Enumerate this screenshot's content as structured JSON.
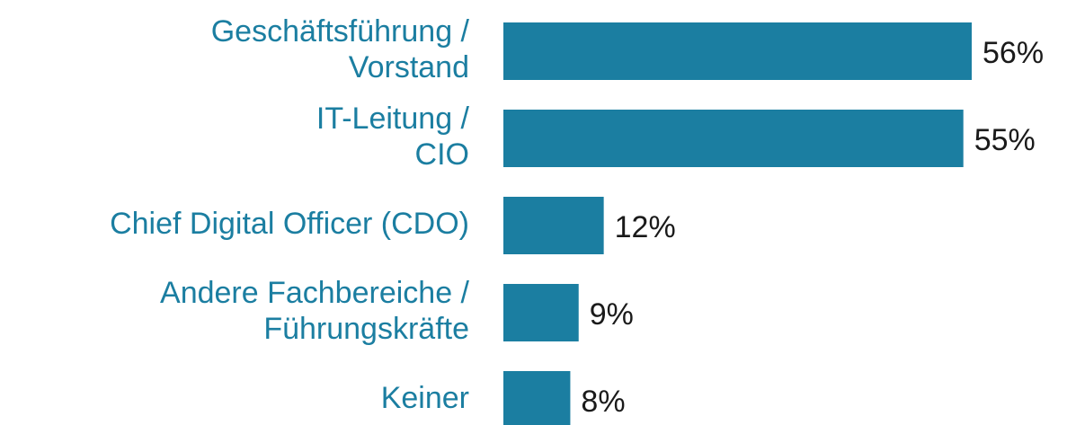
{
  "chart_data": {
    "type": "bar",
    "orientation": "horizontal",
    "categories": [
      "Geschäftsführung / Vorstand",
      "IT-Leitung / CIO",
      "Chief Digital Officer (CDO)",
      "Andere Fachbereiche / Führungskräfte",
      "Keiner"
    ],
    "values": [
      56,
      55,
      12,
      9,
      8
    ],
    "value_labels": [
      "56%",
      "55%",
      "12%",
      "9%",
      "8%"
    ],
    "color": "#1b7ea1"
  }
}
